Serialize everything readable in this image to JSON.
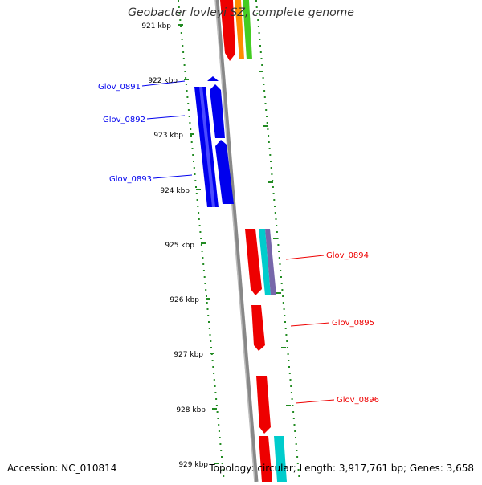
{
  "title": "Geobacter lovleyi SZ, complete genome",
  "footer": {
    "accession": "Accession: NC_010814",
    "topology": "Topology: circular; Length: 3,917,761 bp; Genes: 3,658"
  },
  "colors": {
    "scale_tick": "#228b22",
    "backbone": "#888888",
    "forward_gene": "#0000ee",
    "reverse_gene": "#ee0000",
    "orange": "#ff8c00",
    "green": "#44cc22",
    "cyan": "#00cccc",
    "purple": "#7766aa"
  },
  "scale_labels": [
    "921 kbp",
    "922 kbp",
    "923 kbp",
    "924 kbp",
    "925 kbp",
    "926 kbp",
    "927 kbp",
    "928 kbp",
    "929 kbp"
  ],
  "gene_labels": {
    "glov_0891": "Glov_0891",
    "glov_0892": "Glov_0892",
    "glov_0893": "Glov_0893",
    "glov_0894": "Glov_0894",
    "glov_0895": "Glov_0895",
    "glov_0896": "Glov_0896"
  }
}
